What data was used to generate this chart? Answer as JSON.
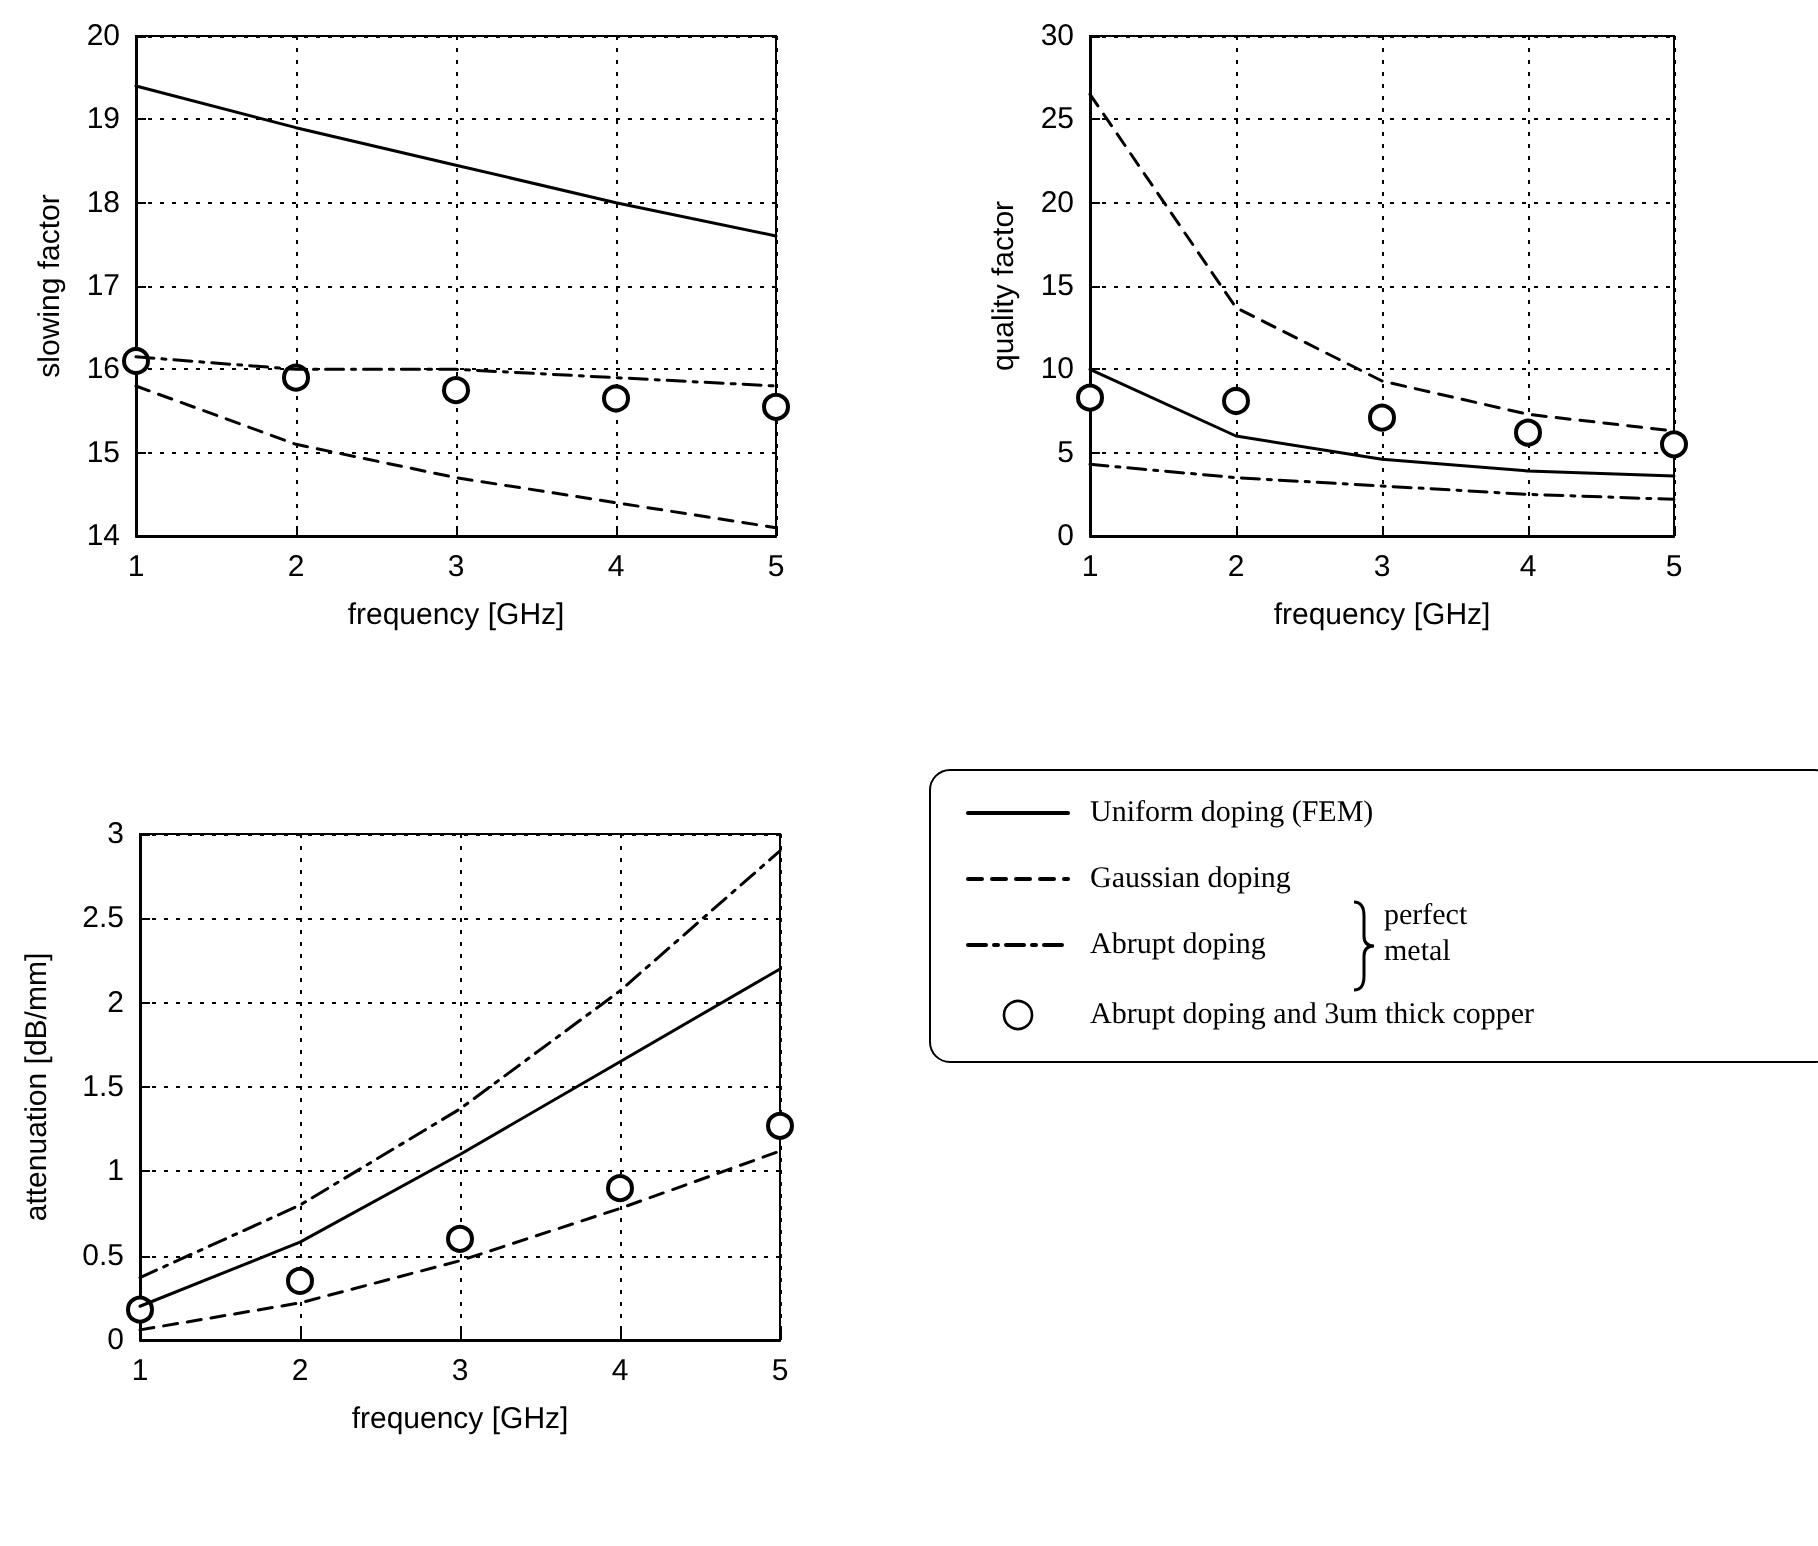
{
  "chart_data": [
    {
      "type": "line",
      "xlabel": "frequency [GHz]",
      "ylabel": "slowing factor",
      "x": [
        1,
        2,
        3,
        4,
        5
      ],
      "xlim": [
        1,
        5
      ],
      "xticks": [
        1,
        2,
        3,
        4,
        5
      ],
      "ylim": [
        14,
        20
      ],
      "yticks": [
        14,
        15,
        16,
        17,
        18,
        19,
        20
      ],
      "grid": true,
      "legend": false,
      "series": [
        {
          "color": "#000000",
          "line_style": "solid",
          "marker": "none",
          "values": [
            19.4,
            18.9,
            18.45,
            18.0,
            17.6
          ]
        },
        {
          "color": "#000000",
          "line_style": "dashed",
          "marker": "none",
          "values": [
            15.8,
            15.1,
            14.7,
            14.4,
            14.1
          ]
        },
        {
          "color": "#000000",
          "line_style": "dashdot",
          "marker": "none",
          "values": [
            16.15,
            16.0,
            16.0,
            15.9,
            15.8
          ]
        },
        {
          "type": "scatter",
          "color": "#000000",
          "marker": "circle",
          "values": [
            16.1,
            15.9,
            15.75,
            15.65,
            15.55
          ]
        }
      ]
    },
    {
      "type": "line",
      "xlabel": "frequency [GHz]",
      "ylabel": "quality factor",
      "x": [
        1,
        2,
        3,
        4,
        5
      ],
      "xlim": [
        1,
        5
      ],
      "xticks": [
        1,
        2,
        3,
        4,
        5
      ],
      "ylim": [
        0,
        30
      ],
      "yticks": [
        0,
        5,
        10,
        15,
        20,
        25,
        30
      ],
      "grid": true,
      "legend": false,
      "series": [
        {
          "color": "#000000",
          "line_style": "solid",
          "marker": "none",
          "values": [
            10,
            6,
            4.6,
            3.9,
            3.6
          ]
        },
        {
          "color": "#000000",
          "line_style": "dashed",
          "marker": "none",
          "values": [
            26.5,
            13.7,
            9.3,
            7.3,
            6.3
          ]
        },
        {
          "color": "#000000",
          "line_style": "dashdot",
          "marker": "none",
          "values": [
            4.3,
            3.5,
            3.0,
            2.5,
            2.2
          ]
        },
        {
          "type": "scatter",
          "color": "#000000",
          "marker": "circle",
          "values": [
            8.3,
            8.1,
            7.1,
            6.2,
            5.5
          ]
        }
      ]
    },
    {
      "type": "line",
      "xlabel": "frequency [GHz]",
      "ylabel": "attenuation [dB/mm]",
      "x": [
        1,
        2,
        3,
        4,
        5
      ],
      "xlim": [
        1,
        5
      ],
      "xticks": [
        1,
        2,
        3,
        4,
        5
      ],
      "ylim": [
        0,
        3
      ],
      "yticks": [
        0,
        0.5,
        1,
        1.5,
        2,
        2.5,
        3
      ],
      "grid": true,
      "legend": "right",
      "annotations": [
        "perfect metal"
      ],
      "series": [
        {
          "name": "Uniform doping (FEM)",
          "color": "#000000",
          "line_style": "solid",
          "marker": "none",
          "values": [
            0.2,
            0.58,
            1.1,
            1.65,
            2.2
          ]
        },
        {
          "name": "Gaussian doping",
          "color": "#000000",
          "line_style": "dashed",
          "marker": "none",
          "values": [
            0.06,
            0.22,
            0.47,
            0.78,
            1.12
          ]
        },
        {
          "name": "Abrupt doping",
          "color": "#000000",
          "line_style": "dashdot",
          "marker": "none",
          "values": [
            0.37,
            0.8,
            1.37,
            2.07,
            2.9
          ]
        },
        {
          "name": "Abrupt doping and 3um thick copper",
          "type": "scatter",
          "color": "#000000",
          "marker": "circle",
          "values": [
            0.18,
            0.35,
            0.6,
            0.9,
            1.27
          ]
        }
      ]
    }
  ]
}
